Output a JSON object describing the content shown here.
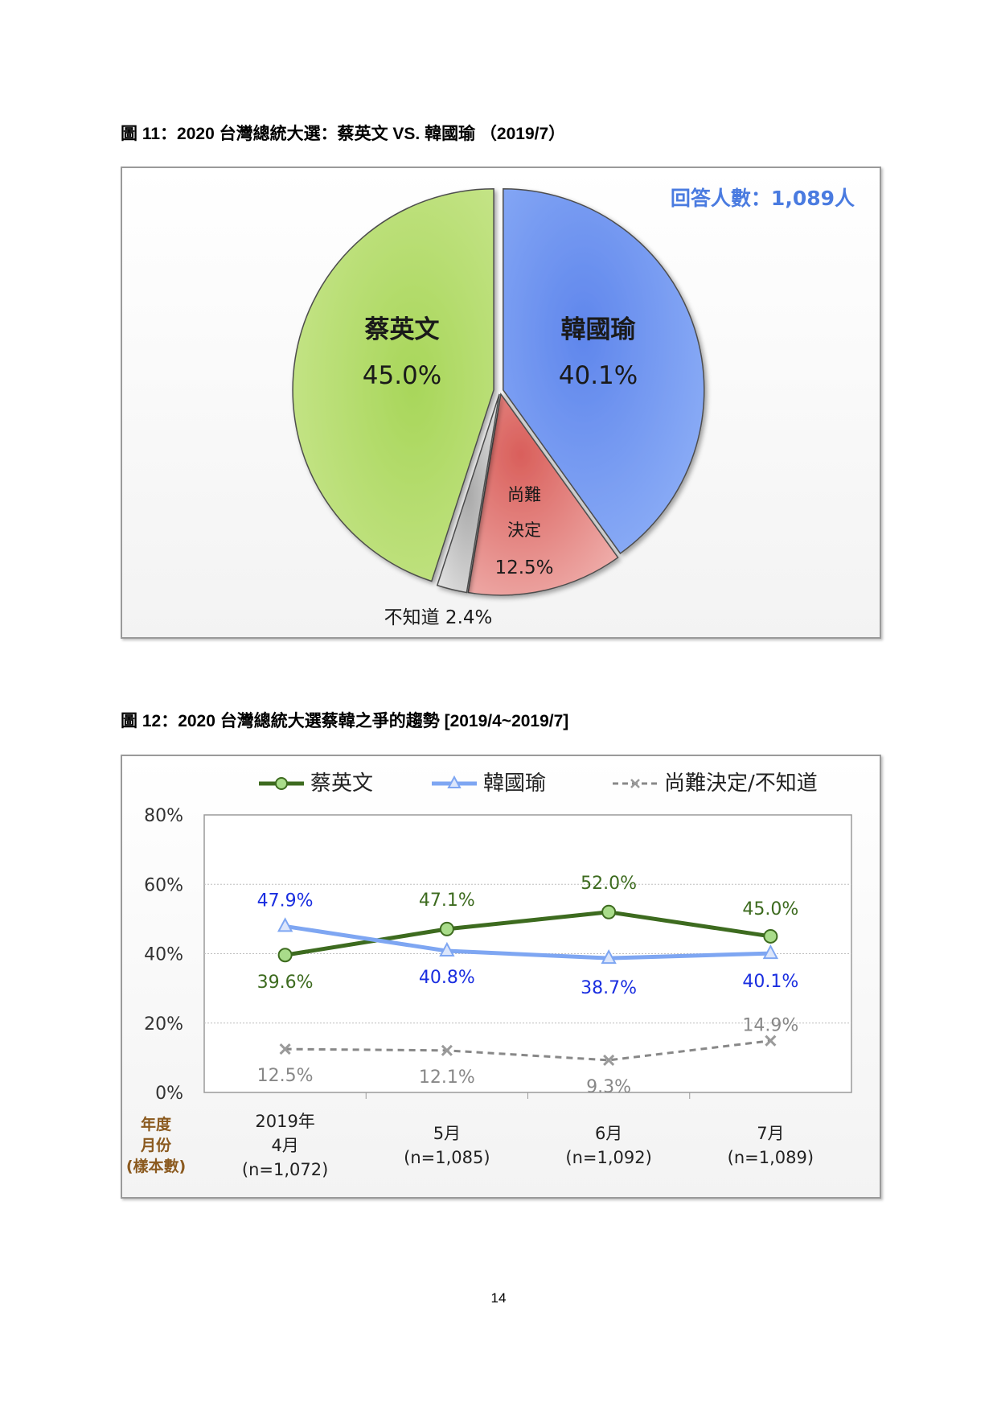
{
  "page_number": "14",
  "figures": [
    {
      "title": "圖 11：2020 台灣總統大選：蔡英文  VS.  韓國瑜  （2019/7）"
    },
    {
      "title": "圖 12：2020 台灣總統大選蔡韓之爭的趨勢  [2019/4~2019/7]"
    }
  ],
  "chart_data": [
    {
      "type": "pie",
      "annotation": "回答人數：1,089人",
      "slices": [
        {
          "name": "韓國瑜",
          "value": 40.1,
          "label": "40.1%",
          "color": "#6f97f0"
        },
        {
          "name": "尚難決定",
          "label_lines": [
            "尚難",
            "決定"
          ],
          "value": 12.5,
          "label": "12.5%",
          "color": "#e07f7c"
        },
        {
          "name": "不知道",
          "value": 2.4,
          "label": "不知道 2.4%",
          "color": "#c8c8c8"
        },
        {
          "name": "蔡英文",
          "value": 45.0,
          "label": "45.0%",
          "color": "#b5dd6a"
        }
      ]
    },
    {
      "type": "line",
      "categories": [
        "4月",
        "5月",
        "6月",
        "7月"
      ],
      "category_year": "2019年",
      "sample_sizes": [
        "(n=1,072)",
        "(n=1,085)",
        "(n=1,092)",
        "(n=1,089)"
      ],
      "row_labels": [
        "年度",
        "月份",
        "(樣本數)"
      ],
      "ylim": [
        0,
        80
      ],
      "yticks": [
        "0%",
        "20%",
        "40%",
        "60%",
        "80%"
      ],
      "ytick_values": [
        0,
        20,
        40,
        60,
        80
      ],
      "grid": true,
      "legend_position": "top",
      "series": [
        {
          "name": "蔡英文",
          "values": [
            39.6,
            47.1,
            52.0,
            45.0
          ],
          "labels": [
            "39.6%",
            "47.1%",
            "52.0%",
            "45.0%"
          ],
          "color": "#3d6b1f",
          "label_color": "#3d6b1f",
          "marker": "circle",
          "style": "solid"
        },
        {
          "name": "韓國瑜",
          "values": [
            47.9,
            40.8,
            38.7,
            40.1
          ],
          "labels": [
            "47.9%",
            "40.8%",
            "38.7%",
            "40.1%"
          ],
          "color": "#7ea6f2",
          "label_color": "#1a2ee0",
          "marker": "triangle",
          "style": "solid"
        },
        {
          "name": "尚難決定/不知道",
          "values": [
            12.5,
            12.1,
            9.3,
            14.9
          ],
          "labels": [
            "12.5%",
            "12.1%",
            "9.3%",
            "14.9%"
          ],
          "color": "#888888",
          "label_color": "#888888",
          "marker": "x",
          "style": "dashed"
        }
      ]
    }
  ]
}
